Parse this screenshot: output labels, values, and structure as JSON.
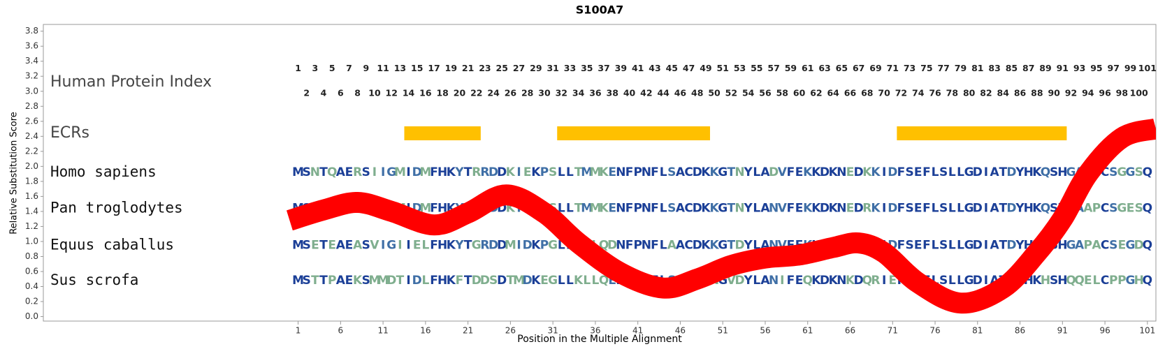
{
  "chart_data": {
    "type": "line",
    "title": "S100A7",
    "xlabel": "Position in the Multiple Alignment",
    "ylabel": "Relative Substitution Score",
    "xlim": [
      -29,
      102
    ],
    "ylim": [
      -0.06,
      3.89
    ],
    "xticks": [
      1,
      6,
      11,
      16,
      21,
      26,
      31,
      36,
      41,
      46,
      51,
      56,
      61,
      66,
      71,
      76,
      81,
      86,
      91,
      96,
      101
    ],
    "yticks": [
      {
        "value": 0,
        "label": "0.0"
      },
      0.2,
      0.4,
      0.6,
      0.8,
      {
        "value": 1,
        "label": "1.0"
      },
      1.2,
      1.4,
      1.6,
      1.8,
      {
        "value": 2,
        "label": "2.0"
      },
      2.2,
      2.4,
      2.6,
      2.8,
      {
        "value": 3,
        "label": "3.0"
      },
      3.2,
      3.4,
      3.6,
      3.8
    ],
    "x": [
      0,
      4,
      8,
      12,
      17,
      21,
      25.5,
      30,
      34,
      39,
      44,
      48,
      52,
      56,
      60,
      64,
      67,
      70,
      74,
      79,
      84,
      88,
      91,
      94,
      98,
      102
    ],
    "values": [
      1.28,
      1.42,
      1.52,
      1.4,
      1.22,
      1.38,
      1.62,
      1.38,
      0.98,
      0.58,
      0.38,
      0.5,
      0.68,
      0.78,
      0.82,
      0.92,
      0.98,
      0.85,
      0.45,
      0.18,
      0.38,
      0.85,
      1.3,
      1.9,
      2.38,
      2.5
    ],
    "color": "#ff0000",
    "index_label": "Human Protein Index",
    "human_index": [
      1,
      2,
      3,
      4,
      5,
      6,
      7,
      8,
      9,
      10,
      11,
      12,
      13,
      14,
      15,
      16,
      17,
      18,
      19,
      20,
      21,
      22,
      23,
      24,
      25,
      26,
      27,
      28,
      29,
      30,
      31,
      32,
      33,
      34,
      35,
      36,
      37,
      38,
      39,
      40,
      41,
      42,
      43,
      44,
      45,
      46,
      47,
      48,
      49,
      50,
      51,
      52,
      53,
      54,
      55,
      56,
      57,
      58,
      59,
      60,
      61,
      62,
      63,
      64,
      65,
      66,
      67,
      68,
      69,
      70,
      71,
      72,
      73,
      74,
      75,
      76,
      77,
      78,
      79,
      80,
      81,
      82,
      83,
      84,
      85,
      86,
      87,
      88,
      89,
      90,
      91,
      92,
      93,
      94,
      95,
      96,
      97,
      98,
      99,
      100,
      101
    ],
    "ecr_label": "ECRs",
    "ecr_color": "#ffc000",
    "ecrs": [
      {
        "start": 14,
        "end": 22
      },
      {
        "start": 32,
        "end": 49
      },
      {
        "start": 72,
        "end": 91
      }
    ],
    "alignment": [
      {
        "species": "Homo sapiens",
        "sequence": "MSNTQAERSIIGMIDMFHKYTRRDDKIEKPSLLTMMKENFPNFLSACDKKGTNYLADVFEKKDKNEDKKIDFSEFLSLLGDIATDYHKQSHGAAPCSGGSQ"
      },
      {
        "species": "Pan troglodytes",
        "sequence": "MSNTQAERSIIGMIDMFHKYTRRDDKIDKPSLLTMMKENFPNFLSACDKKGTNYLANVFEKKDKNEDRKIDFSEFLSLLGDIATDYHKQSHGAAPCSGESQ"
      },
      {
        "species": "Equus caballus",
        "sequence": "MSETEAEASVIGIIELFHKYTGRDDMIDKPGLLKMLQDNFPNFLAACDKKGTDYLANVFEKKDKNRDKKIDFSEFLSLLGDIATDYHKQSHGAPACSEGDQ"
      },
      {
        "species": "Sus scrofa",
        "sequence": "MSTTPAEKSMMDTIDLFHKFTDDSDTMDKEGLLKLLQENFPNFLSACDKNGVDYLANIFEQKDKNKDQRIEFSEFLSLLGDIATGYHKHSHQQELCPPGHQ"
      }
    ]
  }
}
